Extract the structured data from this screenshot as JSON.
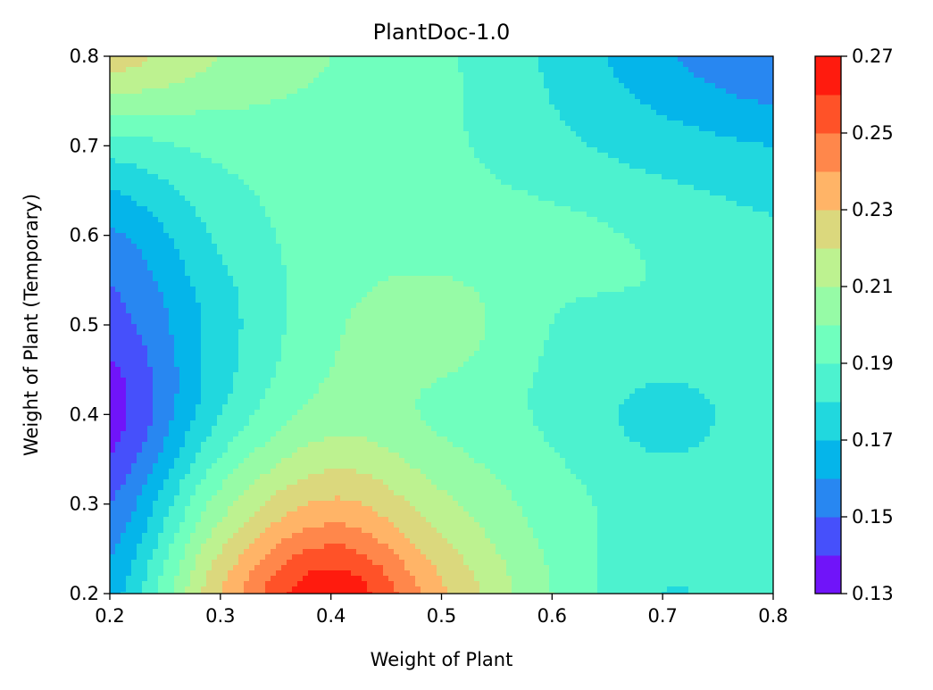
{
  "chart_data": {
    "type": "heatmap",
    "title": "PlantDoc-1.0",
    "xlabel": "Weight of Plant",
    "ylabel": "Weight of Plant (Temporary)",
    "xlim": [
      0.2,
      0.8
    ],
    "ylim": [
      0.2,
      0.8
    ],
    "x_ticks": [
      "0.2",
      "0.3",
      "0.4",
      "0.5",
      "0.6",
      "0.7",
      "0.8"
    ],
    "y_ticks": [
      "0.2",
      "0.3",
      "0.4",
      "0.5",
      "0.6",
      "0.7",
      "0.8"
    ],
    "colorbar": {
      "range": [
        0.13,
        0.27
      ],
      "step": 0.01,
      "tick_labels": [
        "0.13",
        "0.15",
        "0.17",
        "0.19",
        "0.21",
        "0.23",
        "0.25",
        "0.27"
      ],
      "colors": [
        "#7014f9",
        "#4650fb",
        "#2887f1",
        "#05b5ea",
        "#21d8de",
        "#4df2cf",
        "#70ffbe",
        "#96fba6",
        "#bdf290",
        "#dbd87d",
        "#ffb467",
        "#ff874b",
        "#ff5228",
        "#ff1b0e"
      ],
      "colormap": "rainbow"
    },
    "x": [
      0.2,
      0.3,
      0.4,
      0.5,
      0.6,
      0.7,
      0.8
    ],
    "y": [
      0.2,
      0.3,
      0.4,
      0.5,
      0.6,
      0.7,
      0.8
    ],
    "z": [
      [
        0.165,
        0.23,
        0.268,
        0.232,
        0.2,
        0.18,
        0.187
      ],
      [
        0.15,
        0.205,
        0.232,
        0.213,
        0.195,
        0.185,
        0.188
      ],
      [
        0.135,
        0.18,
        0.205,
        0.198,
        0.188,
        0.177,
        0.185
      ],
      [
        0.145,
        0.175,
        0.198,
        0.205,
        0.19,
        0.188,
        0.187
      ],
      [
        0.158,
        0.182,
        0.195,
        0.195,
        0.193,
        0.188,
        0.182
      ],
      [
        0.185,
        0.193,
        0.195,
        0.192,
        0.183,
        0.175,
        0.17
      ],
      [
        0.225,
        0.21,
        0.2,
        0.192,
        0.178,
        0.162,
        0.15
      ]
    ],
    "grid": false
  }
}
